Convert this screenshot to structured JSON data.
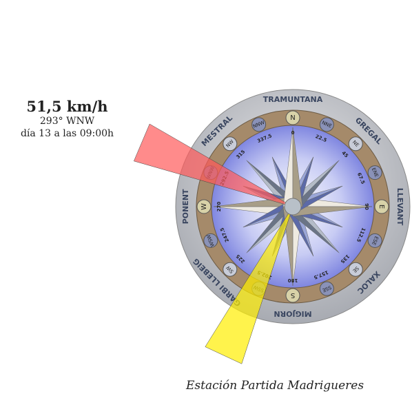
{
  "reading": {
    "speed": "51,5 km/h",
    "direction": "293° WNW",
    "time": "día 13 a las 09:00h"
  },
  "station": "Estación Partida Madrigueres",
  "compass": {
    "regions": [
      "TRAMUNTANA",
      "GREGAL",
      "LLEVANT",
      "XALOC",
      "MIGJORN",
      "GARBI LLEBEIG",
      "PONENT",
      "MESTRAL"
    ],
    "points": [
      "N",
      "NNE",
      "NE",
      "ENE",
      "E",
      "ESE",
      "SE",
      "SSE",
      "S",
      "SSW",
      "SW",
      "WSW",
      "W",
      "WNW",
      "NW",
      "NNW"
    ],
    "degrees": [
      "0",
      "22.5",
      "45",
      "67.5",
      "90",
      "112.5",
      "135",
      "157.5",
      "180",
      "202.5",
      "225",
      "247.5",
      "270",
      "292.5",
      "315",
      "337.5"
    ]
  },
  "sectors": [
    {
      "color": "#ff5a5a",
      "direction": 293
    },
    {
      "color": "#ffee00",
      "direction": 205
    }
  ]
}
